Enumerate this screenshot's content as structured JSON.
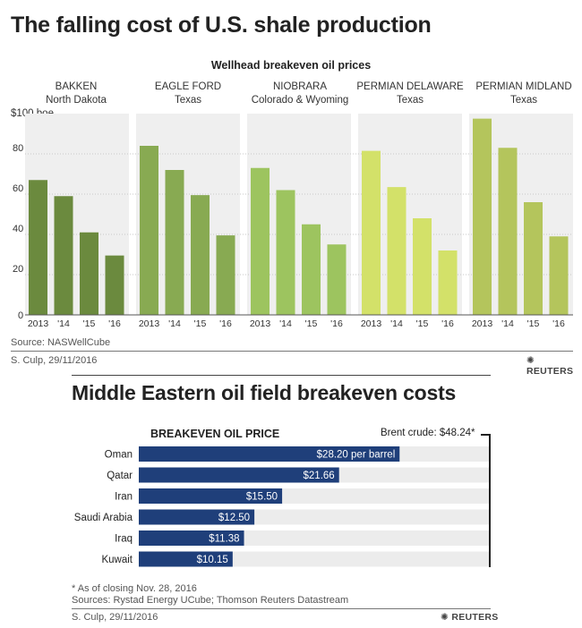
{
  "top": {
    "title": "The falling cost of U.S. shale production",
    "subtitle": "Wellhead breakeven oil prices",
    "y_unit_label": "$100 boe",
    "source": "Source:  NASWellCube",
    "credit": "S. Culp, 29/11/2016",
    "logo": "REUTERS"
  },
  "bottom": {
    "title": "Middle Eastern oil field breakeven costs",
    "subtitle": "BREAKEVEN OIL PRICE",
    "brent_label": "Brent crude: $48.24*",
    "note": "* As of closing Nov. 28, 2016",
    "sources": "Sources:  Rystad Energy UCube; Thomson Reuters Datastream",
    "credit": "S. Culp,  29/11/2016",
    "logo": "REUTERS"
  },
  "colors": {
    "bakken": "#6b8a3e",
    "eagle_ford": "#88aa52",
    "niobrara": "#9dc45f",
    "permian_delaware": "#d3e169",
    "permian_midland": "#b4c55c",
    "panel_bg": "#efefef",
    "bar_blue": "#1f3f7a",
    "row_bg": "#ececec"
  },
  "chart_data": [
    {
      "type": "bar",
      "title": "Wellhead breakeven oil prices",
      "ylabel": "$100 boe",
      "ylim": [
        0,
        100
      ],
      "yticks": [
        0,
        20,
        40,
        60,
        80
      ],
      "grid": true,
      "categories": [
        "2013",
        "'14",
        "'15",
        "'16"
      ],
      "series": [
        {
          "name": "BAKKEN",
          "subname": "North Dakota",
          "values": [
            67,
            59,
            41,
            29.5
          ]
        },
        {
          "name": "EAGLE FORD",
          "subname": "Texas",
          "values": [
            84,
            72,
            59.5,
            39.5
          ]
        },
        {
          "name": "NIOBRARA",
          "subname": "Colorado & Wyoming",
          "values": [
            73,
            62,
            45,
            35
          ]
        },
        {
          "name": "PERMIAN DELAWARE",
          "subname": "Texas",
          "values": [
            81.5,
            63.5,
            48,
            32
          ]
        },
        {
          "name": "PERMIAN MIDLAND",
          "subname": "Texas",
          "values": [
            97.5,
            83,
            56,
            39
          ]
        }
      ]
    },
    {
      "type": "bar",
      "title": "BREAKEVEN OIL PRICE",
      "orientation": "horizontal",
      "categories": [
        "Oman",
        "Qatar",
        "Iran",
        "Saudi Arabia",
        "Iraq",
        "Kuwait"
      ],
      "values": [
        28.2,
        21.66,
        15.5,
        12.5,
        11.38,
        10.15
      ],
      "labels": [
        "$28.20 per barrel",
        "$21.66",
        "$15.50",
        "$12.50",
        "$11.38",
        "$10.15"
      ],
      "reference_line": {
        "label": "Brent crude: $48.24*",
        "value": 48.24
      }
    }
  ]
}
